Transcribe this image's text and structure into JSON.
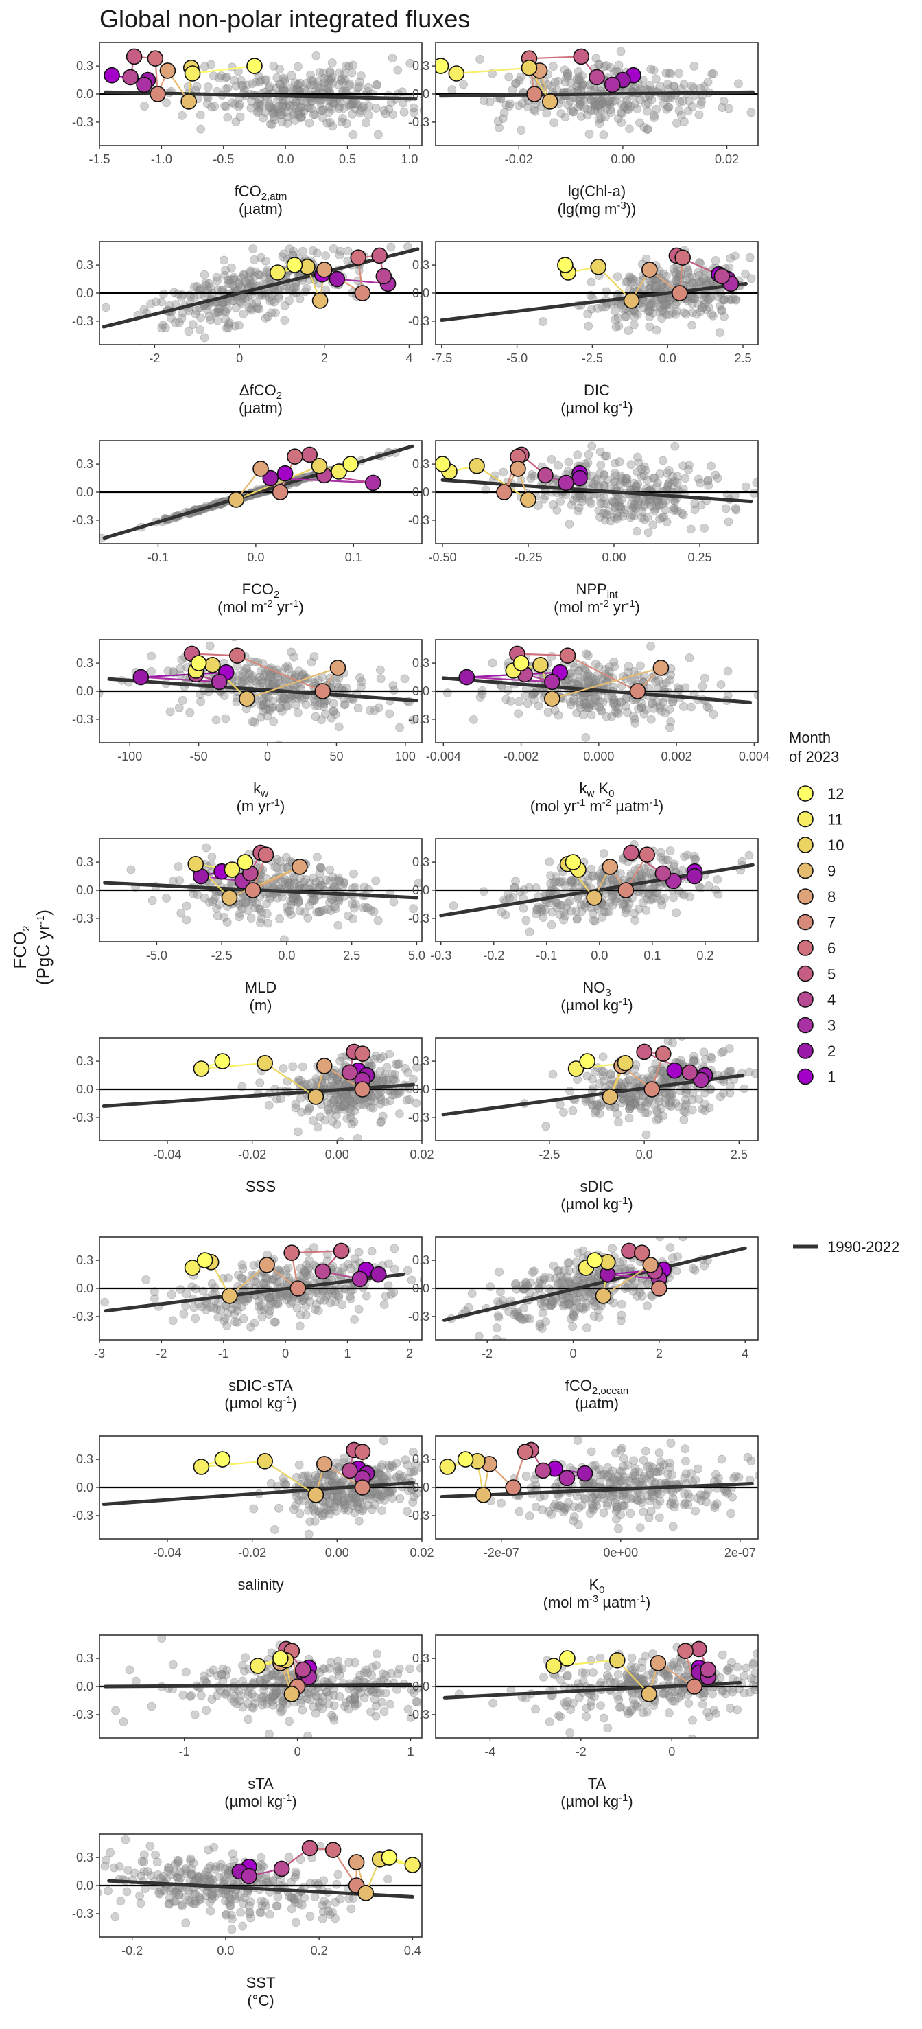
{
  "title": "Global non-polar integrated fluxes",
  "y_label": [
    "FCO2",
    "(PgC yr-1)"
  ],
  "y_ticks": [
    "0.3",
    "0.0",
    "-0.3"
  ],
  "legend": {
    "title": [
      "Month",
      "of 2023"
    ],
    "months": [
      "12",
      "11",
      "10",
      "9",
      "8",
      "7",
      "6",
      "5",
      "4",
      "3",
      "2",
      "1"
    ],
    "month_colors": [
      "#ffff66",
      "#f7ee63",
      "#ecd462",
      "#e5bb6e",
      "#dfa379",
      "#d88a7a",
      "#d0727d",
      "#c65e84",
      "#b84a93",
      "#aa31a3",
      "#9a1aa8",
      "#a300c8"
    ],
    "line_label": "1990-2022"
  },
  "colors": {
    "points": "#8c8c8c",
    "trend": "#333333",
    "zero": "#000000",
    "panel_border": "#333333"
  },
  "chart_data": [
    {
      "type": "scatter",
      "xlabel": [
        "fCO2,atm",
        "(µatm)"
      ],
      "xlim": [
        -1.5,
        1.1
      ],
      "ylim": [
        -0.55,
        0.55
      ],
      "x_ticks": [
        "-1.5",
        "-1.0",
        "-0.5",
        "0.0",
        "0.5",
        "1.0"
      ],
      "x_tick_values": [
        -1.5,
        -1.0,
        -0.5,
        0.0,
        0.5,
        1.0
      ],
      "months_x": [
        -0.25,
        -0.75,
        -0.76,
        -0.78,
        -0.95,
        -1.03,
        -1.05,
        -1.22,
        -1.25,
        -1.14,
        -1.11,
        -1.4
      ],
      "trend": [
        [
          -1.45,
          0.02
        ],
        [
          1.05,
          -0.05
        ]
      ],
      "cloud_center": 0.1,
      "cloud_sd": 0.45
    },
    {
      "type": "scatter",
      "xlabel": [
        "lg(Chl-a)",
        "(lg(mg m-3))"
      ],
      "xlim": [
        -0.036,
        0.026
      ],
      "ylim": [
        -0.55,
        0.55
      ],
      "x_ticks": [
        "-0.02",
        "0.00",
        "0.02"
      ],
      "x_tick_values": [
        -0.02,
        0.0,
        0.02
      ],
      "months_x": [
        -0.035,
        -0.032,
        -0.018,
        -0.014,
        -0.016,
        -0.017,
        -0.018,
        -0.008,
        -0.005,
        -0.002,
        0.0,
        0.002
      ],
      "trend": [
        [
          -0.035,
          -0.02
        ],
        [
          0.025,
          0.02
        ]
      ],
      "cloud_center": -0.003,
      "cloud_sd": 0.01
    },
    {
      "type": "scatter",
      "xlabel": [
        "ΔfCO2",
        "(µatm)"
      ],
      "xlim": [
        -3.3,
        4.3
      ],
      "ylim": [
        -0.55,
        0.55
      ],
      "x_ticks": [
        "-2",
        "0",
        "2",
        "4"
      ],
      "x_tick_values": [
        -2,
        0,
        2,
        4
      ],
      "months_x": [
        1.3,
        0.9,
        1.6,
        1.9,
        2.0,
        2.9,
        2.8,
        3.3,
        3.4,
        3.5,
        2.3,
        1.95
      ],
      "trend": [
        [
          -3.2,
          -0.36
        ],
        [
          4.2,
          0.47
        ]
      ],
      "cloud_center": 0.4,
      "cloud_sd": 1.3
    },
    {
      "type": "scatter",
      "xlabel": [
        "DIC",
        "(µmol kg-1)"
      ],
      "xlim": [
        -7.7,
        3.0
      ],
      "ylim": [
        -0.55,
        0.55
      ],
      "x_ticks": [
        "-7.5",
        "-5.0",
        "-2.5",
        "0.0",
        "2.5"
      ],
      "x_tick_values": [
        -7.5,
        -5.0,
        -2.5,
        0.0,
        2.5
      ],
      "months_x": [
        -3.4,
        -3.3,
        -2.3,
        -1.2,
        -0.6,
        0.4,
        0.5,
        0.3,
        1.8,
        2.1,
        2.0,
        1.7
      ],
      "trend": [
        [
          -7.5,
          -0.29
        ],
        [
          2.6,
          0.1
        ]
      ],
      "cloud_center": 0.2,
      "cloud_sd": 1.3
    },
    {
      "type": "scatter",
      "xlabel": [
        "FCO2",
        "(mol m-2 yr-1)"
      ],
      "xlim": [
        -0.16,
        0.17
      ],
      "ylim": [
        -0.55,
        0.55
      ],
      "x_ticks": [
        "-0.1",
        "0.0",
        "0.1"
      ],
      "x_tick_values": [
        -0.1,
        0.0,
        0.1
      ],
      "months_x": [
        0.097,
        0.085,
        0.065,
        -0.02,
        0.005,
        0.025,
        0.04,
        0.055,
        0.07,
        0.12,
        0.015,
        0.03
      ],
      "trend": [
        [
          -0.155,
          -0.49
        ],
        [
          0.16,
          0.49
        ]
      ],
      "cloud_center": 0.0,
      "cloud_sd": 0.05,
      "points_on_line": true
    },
    {
      "type": "scatter",
      "xlabel": [
        "NPPint",
        "(mol m-2 yr-1)"
      ],
      "xlim": [
        -0.52,
        0.42
      ],
      "ylim": [
        -0.55,
        0.55
      ],
      "x_ticks": [
        "-0.50",
        "-0.25",
        "0.00",
        "0.25"
      ],
      "x_tick_values": [
        -0.5,
        -0.25,
        0.0,
        0.25
      ],
      "months_x": [
        -0.5,
        -0.48,
        -0.4,
        -0.25,
        -0.28,
        -0.32,
        -0.28,
        -0.27,
        -0.2,
        -0.14,
        -0.1,
        -0.1
      ],
      "trend": [
        [
          -0.5,
          0.13
        ],
        [
          0.4,
          -0.1
        ]
      ],
      "cloud_center": 0.0,
      "cloud_sd": 0.15
    },
    {
      "type": "scatter",
      "xlabel": [
        "kw",
        "(m yr-1)"
      ],
      "xlim": [
        -122,
        112
      ],
      "ylim": [
        -0.55,
        0.55
      ],
      "x_ticks": [
        "-100",
        "-50",
        "0",
        "50",
        "100"
      ],
      "x_tick_values": [
        -100,
        -50,
        0,
        50,
        100
      ],
      "months_x": [
        -50,
        -52,
        -40,
        -15,
        51,
        40,
        -22,
        -55,
        -52,
        -35,
        -92,
        -30
      ],
      "trend": [
        [
          -115,
          0.13
        ],
        [
          108,
          -0.1
        ]
      ],
      "cloud_center": 0,
      "cloud_sd": 40
    },
    {
      "type": "scatter",
      "xlabel": [
        "kw K0",
        "(mol yr-1 m-2 µatm-1)"
      ],
      "xlim": [
        -0.0042,
        0.0041
      ],
      "ylim": [
        -0.55,
        0.55
      ],
      "x_ticks": [
        "-0.004",
        "-0.002",
        "0.000",
        "0.002",
        "0.004"
      ],
      "x_tick_values": [
        -0.004,
        -0.002,
        0.0,
        0.002,
        0.004
      ],
      "months_x": [
        -0.002,
        -0.0022,
        -0.0015,
        -0.0012,
        0.0016,
        0.001,
        -0.0008,
        -0.0021,
        -0.0019,
        -0.0012,
        -0.0034,
        -0.001
      ],
      "trend": [
        [
          -0.004,
          0.14
        ],
        [
          0.0039,
          -0.12
        ]
      ],
      "cloud_center": 0.0,
      "cloud_sd": 0.0013
    },
    {
      "type": "scatter",
      "xlabel": [
        "MLD",
        "(m)"
      ],
      "xlim": [
        -7.2,
        5.2
      ],
      "ylim": [
        -0.55,
        0.55
      ],
      "x_ticks": [
        "-5.0",
        "-2.5",
        "0.0",
        "2.5",
        "5.0"
      ],
      "x_tick_values": [
        -5.0,
        -2.5,
        0.0,
        2.5,
        5.0
      ],
      "months_x": [
        -1.6,
        -2.1,
        -3.5,
        -2.2,
        0.5,
        -1.3,
        -0.8,
        -1.0,
        -1.4,
        -1.7,
        -3.3,
        -2.5
      ],
      "trend": [
        [
          -7.0,
          0.08
        ],
        [
          5.0,
          -0.08
        ]
      ],
      "cloud_center": -0.5,
      "cloud_sd": 2.0
    },
    {
      "type": "scatter",
      "xlabel": [
        "NO3",
        "(µmol kg-1)"
      ],
      "xlim": [
        -0.31,
        0.3
      ],
      "ylim": [
        -0.55,
        0.55
      ],
      "x_ticks": [
        "-0.3",
        "-0.2",
        "-0.1",
        "0.0",
        "0.1",
        "0.2"
      ],
      "x_tick_values": [
        -0.3,
        -0.2,
        -0.1,
        0.0,
        0.1,
        0.2
      ],
      "months_x": [
        -0.05,
        -0.04,
        -0.06,
        -0.01,
        0.02,
        0.05,
        0.09,
        0.06,
        0.12,
        0.14,
        0.18,
        0.18
      ],
      "trend": [
        [
          -0.3,
          -0.27
        ],
        [
          0.29,
          0.27
        ]
      ],
      "cloud_center": 0.02,
      "cloud_sd": 0.1
    },
    {
      "type": "scatter",
      "xlabel": [
        "SSS",
        ""
      ],
      "xlim": [
        -0.056,
        0.02
      ],
      "ylim": [
        -0.55,
        0.55
      ],
      "x_ticks": [
        "-0.04",
        "-0.02",
        "0.00",
        "0.02"
      ],
      "x_tick_values": [
        -0.04,
        -0.02,
        0.0,
        0.02
      ],
      "months_x": [
        -0.027,
        -0.032,
        -0.017,
        -0.005,
        -0.003,
        0.006,
        0.006,
        0.004,
        0.003,
        0.006,
        0.007,
        0.005
      ],
      "trend": [
        [
          -0.055,
          -0.18
        ],
        [
          0.018,
          0.05
        ]
      ],
      "cloud_center": 0.003,
      "cloud_sd": 0.008
    },
    {
      "type": "scatter",
      "xlabel": [
        "sDIC",
        "(µmol kg-1)"
      ],
      "xlim": [
        -5.5,
        3.0
      ],
      "ylim": [
        -0.55,
        0.55
      ],
      "x_ticks": [
        "-2.5",
        "0.0",
        "2.5"
      ],
      "x_tick_values": [
        -2.5,
        0.0,
        2.5
      ],
      "months_x": [
        -1.5,
        -1.8,
        -0.5,
        -0.9,
        -0.6,
        0.2,
        0.5,
        0.0,
        1.2,
        1.5,
        1.6,
        0.8
      ],
      "trend": [
        [
          -5.3,
          -0.27
        ],
        [
          2.6,
          0.15
        ]
      ],
      "cloud_center": 0.3,
      "cloud_sd": 1.1
    },
    {
      "type": "scatter",
      "xlabel": [
        "sDIC-sTA",
        "(µmol kg-1)"
      ],
      "xlim": [
        -3.0,
        2.2
      ],
      "ylim": [
        -0.55,
        0.55
      ],
      "x_ticks": [
        "-3",
        "-2",
        "-1",
        "0",
        "1",
        "2"
      ],
      "x_tick_values": [
        -3,
        -2,
        -1,
        0,
        1,
        2
      ],
      "months_x": [
        -1.3,
        -1.5,
        -1.2,
        -0.9,
        -0.3,
        0.2,
        0.1,
        0.9,
        0.6,
        1.2,
        1.5,
        1.3
      ],
      "trend": [
        [
          -2.9,
          -0.24
        ],
        [
          1.9,
          0.15
        ]
      ],
      "cloud_center": 0.0,
      "cloud_sd": 0.9
    },
    {
      "type": "scatter",
      "xlabel": [
        "fCO2,ocean",
        "(µatm)"
      ],
      "xlim": [
        -3.2,
        4.3
      ],
      "ylim": [
        -0.55,
        0.55
      ],
      "x_ticks": [
        "-2",
        "0",
        "2",
        "4"
      ],
      "x_tick_values": [
        -2,
        0,
        2,
        4
      ],
      "months_x": [
        0.5,
        0.3,
        0.8,
        0.7,
        1.8,
        2.0,
        1.6,
        1.3,
        1.9,
        2.0,
        0.8,
        2.1
      ],
      "trend": [
        [
          -3.0,
          -0.34
        ],
        [
          4.0,
          0.43
        ]
      ],
      "cloud_center": 0.2,
      "cloud_sd": 1.1
    },
    {
      "type": "scatter",
      "xlabel": [
        "salinity",
        ""
      ],
      "xlim": [
        -0.056,
        0.02
      ],
      "ylim": [
        -0.55,
        0.55
      ],
      "x_ticks": [
        "-0.04",
        "-0.02",
        "0.00",
        "0.02"
      ],
      "x_tick_values": [
        -0.04,
        -0.02,
        0.0,
        0.02
      ],
      "months_x": [
        -0.027,
        -0.032,
        -0.017,
        -0.005,
        -0.003,
        0.006,
        0.006,
        0.004,
        0.003,
        0.006,
        0.007,
        0.005
      ],
      "trend": [
        [
          -0.055,
          -0.18
        ],
        [
          0.018,
          0.05
        ]
      ],
      "cloud_center": 0.003,
      "cloud_sd": 0.008
    },
    {
      "type": "scatter",
      "xlabel": [
        "K0",
        "(mol m-3 µatm-1)"
      ],
      "xlim": [
        -3.1e-07,
        2.3e-07
      ],
      "ylim": [
        -0.55,
        0.55
      ],
      "x_ticks": [
        "-2e-07",
        "0e+00",
        "2e-07"
      ],
      "x_tick_values": [
        -2e-07,
        0,
        2e-07
      ],
      "months_x": [
        -2.6e-07,
        -2.9e-07,
        -2.4e-07,
        -2.3e-07,
        -2.2e-07,
        -1.8e-07,
        -1.6e-07,
        -1.5e-07,
        -1.3e-07,
        -9e-08,
        -6e-08,
        -1.1e-07
      ],
      "trend": [
        [
          -3e-07,
          -0.1
        ],
        [
          2.2e-07,
          0.04
        ]
      ],
      "cloud_center": 0,
      "cloud_sd": 9e-08
    },
    {
      "type": "scatter",
      "xlabel": [
        "sTA",
        "(µmol kg-1)"
      ],
      "xlim": [
        -1.75,
        1.1
      ],
      "ylim": [
        -0.55,
        0.55
      ],
      "x_ticks": [
        "-1",
        "0",
        "1"
      ],
      "x_tick_values": [
        -1,
        0,
        1
      ],
      "months_x": [
        -0.15,
        -0.35,
        -0.1,
        -0.05,
        -0.15,
        0.0,
        -0.05,
        -0.1,
        0.05,
        0.1,
        0.05,
        0.1
      ],
      "trend": [
        [
          -1.7,
          0.0
        ],
        [
          1.0,
          0.02
        ]
      ],
      "cloud_center": 0.0,
      "cloud_sd": 0.6
    },
    {
      "type": "scatter",
      "xlabel": [
        "TA",
        "(µmol kg-1)"
      ],
      "xlim": [
        -5.2,
        1.9
      ],
      "ylim": [
        -0.55,
        0.55
      ],
      "x_ticks": [
        "-4",
        "-2",
        "0"
      ],
      "x_tick_values": [
        -4,
        -2,
        0
      ],
      "months_x": [
        -2.3,
        -2.6,
        -1.2,
        -0.5,
        -0.3,
        0.5,
        0.3,
        0.6,
        0.8,
        0.8,
        0.6,
        0.6
      ],
      "trend": [
        [
          -5.0,
          -0.12
        ],
        [
          1.5,
          0.04
        ]
      ],
      "cloud_center": -0.2,
      "cloud_sd": 1.3
    },
    {
      "type": "scatter",
      "xlabel": [
        "SST",
        "(°C)"
      ],
      "xlim": [
        -0.27,
        0.42
      ],
      "ylim": [
        -0.55,
        0.55
      ],
      "x_ticks": [
        "-0.2",
        "0.0",
        "0.2",
        "0.4"
      ],
      "x_tick_values": [
        -0.2,
        0.0,
        0.2,
        0.4
      ],
      "months_x": [
        0.35,
        0.4,
        0.33,
        0.3,
        0.28,
        0.28,
        0.23,
        0.18,
        0.12,
        0.05,
        0.03,
        0.05
      ],
      "trend": [
        [
          -0.25,
          0.05
        ],
        [
          0.4,
          -0.12
        ]
      ],
      "cloud_center": 0.0,
      "cloud_sd": 0.12
    }
  ],
  "month_y": [
    0.3,
    0.22,
    0.28,
    -0.08,
    0.25,
    0.0,
    0.38,
    0.4,
    0.18,
    0.1,
    0.15,
    0.2
  ]
}
